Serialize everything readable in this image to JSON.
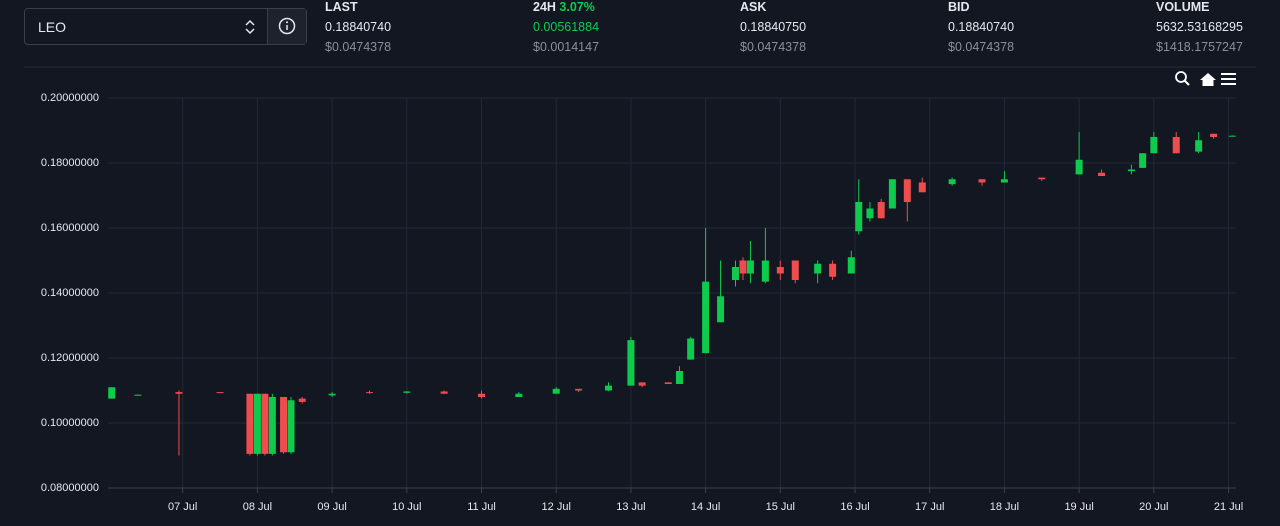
{
  "header": {
    "market": "LEO",
    "stats": [
      {
        "label": "LAST",
        "value": "0.18840740",
        "usd": "$0.0474378"
      },
      {
        "label": "24H",
        "change": "3.07%",
        "value": "0.00561884",
        "usd": "$0.0014147"
      },
      {
        "label": "ASK",
        "value": "0.18840750",
        "usd": "$0.0474378"
      },
      {
        "label": "BID",
        "value": "0.18840740",
        "usd": "$0.0474378"
      },
      {
        "label": "VOLUME",
        "value": "5632.53168295",
        "usd": "$1418.1757247"
      }
    ]
  },
  "chart_data": {
    "type": "candlestick",
    "up_color": "#0ecb4d",
    "down_color": "#ef4d4d",
    "grid": true,
    "xlim": [
      6.0,
      21.1
    ],
    "xticks": [
      {
        "value": 7,
        "label": "07 Jul"
      },
      {
        "value": 8,
        "label": "08 Jul"
      },
      {
        "value": 9,
        "label": "09 Jul"
      },
      {
        "value": 10,
        "label": "10 Jul"
      },
      {
        "value": 11,
        "label": "11 Jul"
      },
      {
        "value": 12,
        "label": "12 Jul"
      },
      {
        "value": 13,
        "label": "13 Jul"
      },
      {
        "value": 14,
        "label": "14 Jul"
      },
      {
        "value": 15,
        "label": "15 Jul"
      },
      {
        "value": 16,
        "label": "16 Jul"
      },
      {
        "value": 17,
        "label": "17 Jul"
      },
      {
        "value": 18,
        "label": "18 Jul"
      },
      {
        "value": 19,
        "label": "19 Jul"
      },
      {
        "value": 20,
        "label": "20 Jul"
      },
      {
        "value": 21,
        "label": "21 Jul"
      }
    ],
    "ylim": [
      0.08,
      0.2
    ],
    "yticks": [
      {
        "value": 0.08,
        "label": "0.08000000"
      },
      {
        "value": 0.1,
        "label": "0.10000000"
      },
      {
        "value": 0.12,
        "label": "0.12000000"
      },
      {
        "value": 0.14,
        "label": "0.14000000"
      },
      {
        "value": 0.16,
        "label": "0.16000000"
      },
      {
        "value": 0.18,
        "label": "0.18000000"
      },
      {
        "value": 0.2,
        "label": "0.20000000"
      }
    ],
    "x": [
      6.05,
      6.4,
      6.95,
      7.5,
      7.9,
      8.0,
      8.1,
      8.2,
      8.35,
      8.45,
      8.6,
      9.0,
      9.5,
      10.0,
      10.5,
      11.0,
      11.5,
      12.0,
      12.3,
      12.7,
      13.0,
      13.15,
      13.5,
      13.65,
      13.8,
      14.0,
      14.2,
      14.4,
      14.5,
      14.6,
      14.8,
      15.0,
      15.2,
      15.5,
      15.7,
      15.95,
      16.05,
      16.2,
      16.35,
      16.5,
      16.7,
      16.9,
      17.3,
      17.7,
      18.0,
      18.5,
      19.0,
      19.3,
      19.7,
      19.85,
      20.0,
      20.3,
      20.6,
      20.8,
      21.05
    ],
    "open": [
      0.1075,
      0.1085,
      0.1095,
      0.1095,
      0.109,
      0.0905,
      0.109,
      0.0905,
      0.108,
      0.091,
      0.1075,
      0.1085,
      0.1095,
      0.1093,
      0.1097,
      0.109,
      0.108,
      0.109,
      0.1105,
      0.11,
      0.1115,
      0.1125,
      0.1125,
      0.112,
      0.1195,
      0.1215,
      0.131,
      0.144,
      0.15,
      0.146,
      0.1435,
      0.148,
      0.15,
      0.146,
      0.149,
      0.146,
      0.159,
      0.163,
      0.168,
      0.166,
      0.175,
      0.174,
      0.1735,
      0.175,
      0.174,
      0.1755,
      0.1765,
      0.177,
      0.1775,
      0.1785,
      0.183,
      0.188,
      0.1835,
      0.189,
      0.1883
    ],
    "high": [
      0.111,
      0.1088,
      0.11,
      0.1095,
      0.109,
      0.109,
      0.109,
      0.109,
      0.108,
      0.108,
      0.108,
      0.1095,
      0.11,
      0.1098,
      0.11,
      0.11,
      0.1095,
      0.111,
      0.1105,
      0.1125,
      0.1265,
      0.1125,
      0.1125,
      0.1175,
      0.1265,
      0.16,
      0.15,
      0.15,
      0.151,
      0.156,
      0.16,
      0.15,
      0.15,
      0.15,
      0.15,
      0.153,
      0.175,
      0.168,
      0.169,
      0.175,
      0.175,
      0.1755,
      0.1755,
      0.175,
      0.1775,
      0.1755,
      0.1895,
      0.178,
      0.1795,
      0.183,
      0.1895,
      0.1895,
      0.1895,
      0.189,
      0.1885
    ],
    "low": [
      0.1075,
      0.1085,
      0.09,
      0.1093,
      0.09,
      0.09,
      0.09,
      0.09,
      0.0905,
      0.0905,
      0.106,
      0.108,
      0.109,
      0.109,
      0.109,
      0.1075,
      0.108,
      0.109,
      0.1095,
      0.1098,
      0.1115,
      0.111,
      0.112,
      0.112,
      0.1195,
      0.1215,
      0.131,
      0.142,
      0.144,
      0.143,
      0.143,
      0.144,
      0.143,
      0.143,
      0.144,
      0.146,
      0.158,
      0.162,
      0.163,
      0.166,
      0.162,
      0.171,
      0.173,
      0.173,
      0.174,
      0.1745,
      0.1765,
      0.176,
      0.1765,
      0.1785,
      0.183,
      0.183,
      0.183,
      0.1875,
      0.1882
    ],
    "close": [
      0.111,
      0.1087,
      0.109,
      0.1093,
      0.0905,
      0.109,
      0.0905,
      0.108,
      0.091,
      0.107,
      0.1065,
      0.109,
      0.1093,
      0.1097,
      0.109,
      0.108,
      0.109,
      0.1105,
      0.11,
      0.1115,
      0.1255,
      0.1115,
      0.112,
      0.116,
      0.126,
      0.1435,
      0.139,
      0.148,
      0.146,
      0.15,
      0.15,
      0.146,
      0.144,
      0.149,
      0.145,
      0.151,
      0.168,
      0.166,
      0.163,
      0.175,
      0.168,
      0.171,
      0.175,
      0.174,
      0.175,
      0.175,
      0.181,
      0.176,
      0.178,
      0.183,
      0.188,
      0.183,
      0.187,
      0.188,
      0.1884
    ]
  }
}
